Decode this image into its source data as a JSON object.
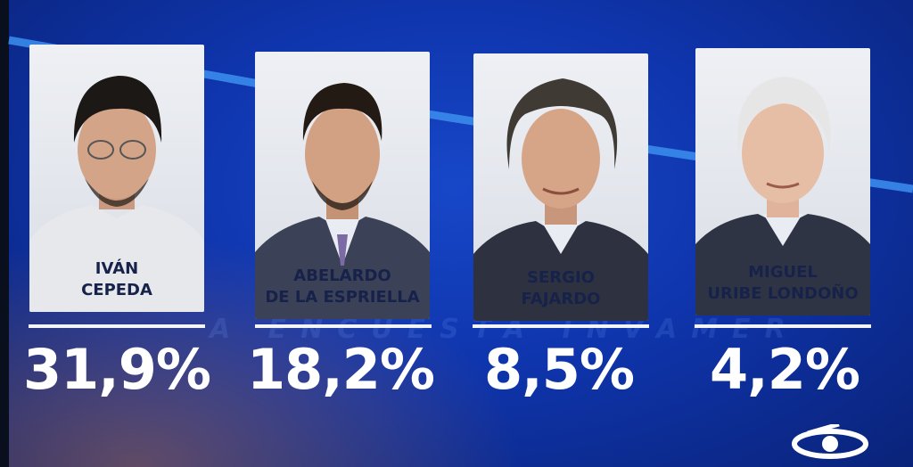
{
  "candidates": [
    {
      "first": "IVÁN",
      "last": "CEPEDA",
      "percent": "31,9%",
      "hair": "#1c1815",
      "suit": "#e7e8ec",
      "tie": ""
    },
    {
      "first": "ABELARDO",
      "last": "DE LA ESPRIELLA",
      "percent": "18,2%",
      "hair": "#241a14",
      "suit": "#3b4156",
      "tie": "#7c6aa5"
    },
    {
      "first": "SERGIO",
      "last": "FAJARDO",
      "percent": "8,5%",
      "hair": "#3f3a34",
      "suit": "#2d3140",
      "tie": ""
    },
    {
      "first": "MIGUEL",
      "last": "URIBE LONDOÑO",
      "percent": "4,2%",
      "hair": "#e6e6e6",
      "suit": "#2f3445",
      "tie": ""
    }
  ],
  "watermark_text": "A ENCUESTA INVAMER",
  "colors": {
    "background": "#0f35ad",
    "accent_line": "#3c8ff0",
    "text_light": "#ffffff",
    "name_text": "#16224a"
  }
}
